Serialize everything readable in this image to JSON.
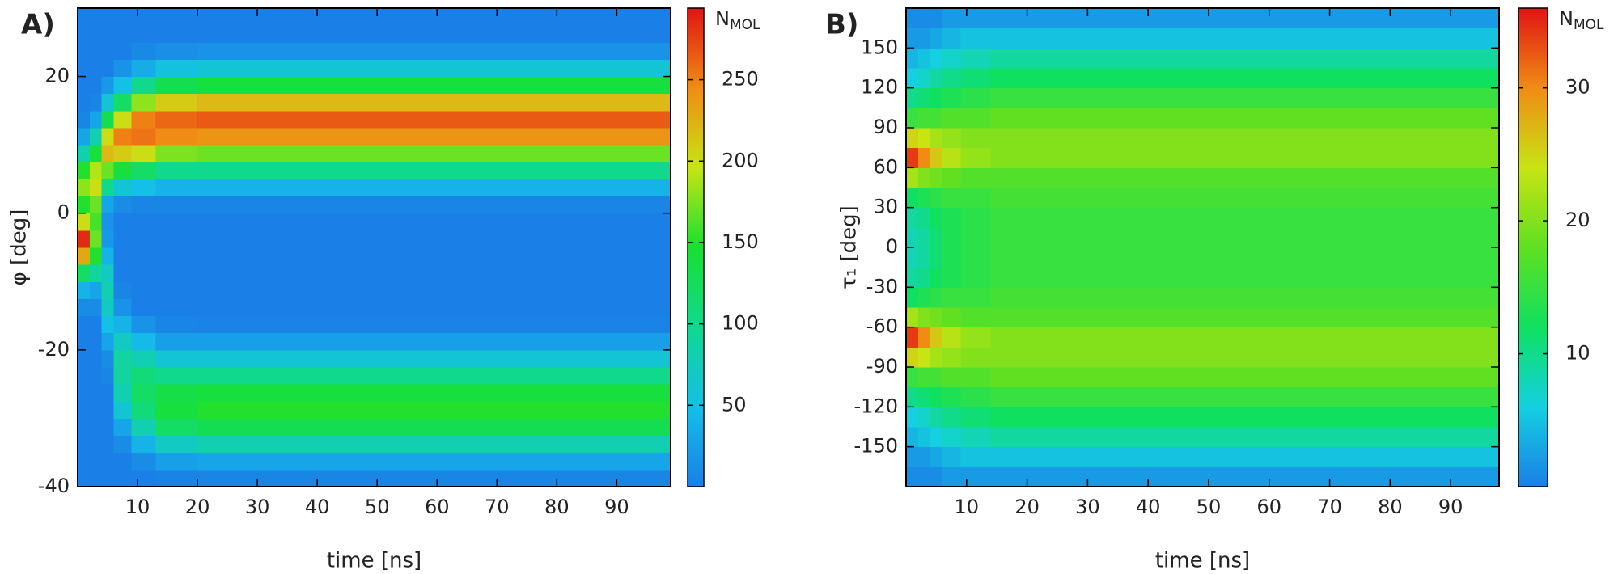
{
  "chart_data": [
    {
      "type": "heatmap",
      "panel_label": "A)",
      "xlabel": "time [ns]",
      "ylabel": "φ [deg]",
      "zlabel": [
        "N",
        "MOL"
      ],
      "xlim": [
        0,
        99
      ],
      "ylim": [
        -40,
        30
      ],
      "zlim": [
        0,
        294
      ],
      "xticks": [
        10,
        20,
        30,
        40,
        50,
        60,
        70,
        80,
        90
      ],
      "yticks": [
        -40,
        -20,
        0,
        20
      ],
      "zticks": [
        50,
        100,
        150,
        200,
        250
      ],
      "colorscale": [
        "#1a7fe6",
        "#14bfe8",
        "#10d890",
        "#18e030",
        "#c8e414",
        "#f08c14",
        "#e01414"
      ],
      "xbins": [
        0,
        2,
        4,
        6,
        9,
        13,
        20,
        99
      ],
      "ybins": [
        -40,
        -37.5,
        -35,
        -32.5,
        -30,
        -27.5,
        -25,
        -22.5,
        -20,
        -17.5,
        -15,
        -12.5,
        -10,
        -7.5,
        -5,
        -2.5,
        0,
        2.5,
        5,
        7.5,
        10,
        12.5,
        15,
        17.5,
        20,
        22.5,
        25,
        27.5,
        30
      ],
      "z": [
        [
          0,
          0,
          0,
          0,
          0,
          3,
          5
        ],
        [
          0,
          0,
          0,
          0,
          10,
          25,
          30
        ],
        [
          0,
          0,
          0,
          10,
          40,
          70,
          80
        ],
        [
          0,
          0,
          0,
          30,
          80,
          120,
          130
        ],
        [
          0,
          0,
          0,
          60,
          110,
          140,
          150
        ],
        [
          0,
          0,
          0,
          80,
          120,
          135,
          140
        ],
        [
          0,
          0,
          5,
          90,
          110,
          100,
          100
        ],
        [
          0,
          0,
          10,
          90,
          80,
          60,
          60
        ],
        [
          0,
          0,
          30,
          70,
          45,
          25,
          25
        ],
        [
          0,
          0,
          50,
          40,
          15,
          5,
          3
        ],
        [
          10,
          10,
          70,
          15,
          0,
          0,
          0
        ],
        [
          40,
          30,
          80,
          5,
          0,
          0,
          0
        ],
        [
          120,
          90,
          70,
          0,
          0,
          0,
          0
        ],
        [
          230,
          150,
          40,
          0,
          0,
          0,
          0
        ],
        [
          285,
          170,
          20,
          0,
          0,
          0,
          0
        ],
        [
          200,
          160,
          15,
          0,
          0,
          0,
          0
        ],
        [
          150,
          170,
          30,
          10,
          5,
          5,
          5
        ],
        [
          180,
          200,
          100,
          60,
          50,
          40,
          40
        ],
        [
          150,
          190,
          170,
          140,
          120,
          100,
          100
        ],
        [
          80,
          140,
          220,
          210,
          200,
          175,
          170
        ],
        [
          30,
          80,
          200,
          250,
          255,
          245,
          240
        ],
        [
          5,
          30,
          130,
          200,
          250,
          260,
          265
        ],
        [
          0,
          5,
          60,
          120,
          180,
          210,
          220
        ],
        [
          0,
          0,
          20,
          50,
          100,
          130,
          140
        ],
        [
          0,
          0,
          0,
          15,
          35,
          55,
          60
        ],
        [
          0,
          0,
          0,
          0,
          8,
          12,
          15
        ],
        [
          0,
          0,
          0,
          0,
          0,
          0,
          0
        ],
        [
          0,
          0,
          0,
          0,
          0,
          0,
          0
        ]
      ]
    },
    {
      "type": "heatmap",
      "panel_label": "B)",
      "xlabel": "time [ns]",
      "ylabel": "τ₁ [deg]",
      "zlabel": [
        "N",
        "MOL"
      ],
      "xlim": [
        0,
        98
      ],
      "ylim": [
        -180,
        180
      ],
      "zlim": [
        0,
        36
      ],
      "xticks": [
        10,
        20,
        30,
        40,
        50,
        60,
        70,
        80,
        90
      ],
      "yticks": [
        -150,
        -120,
        -90,
        -60,
        -30,
        0,
        30,
        60,
        90,
        120,
        150
      ],
      "zticks": [
        10,
        20,
        30
      ],
      "colorscale": [
        "#1a7fe6",
        "#14d0e0",
        "#10e060",
        "#60e020",
        "#c8e414",
        "#f08c14",
        "#e01414"
      ],
      "xbins": [
        0,
        2,
        4,
        6,
        9,
        14,
        20,
        98
      ],
      "ybins": [
        -180,
        -165,
        -150,
        -135,
        -120,
        -105,
        -90,
        -75,
        -60,
        -45,
        -30,
        -15,
        0,
        15,
        30,
        45,
        60,
        75,
        90,
        105,
        120,
        135,
        150,
        165,
        180
      ],
      "z": [
        [
          1,
          1,
          1,
          2,
          2,
          2,
          2
        ],
        [
          2,
          2,
          3,
          4,
          5,
          5,
          5
        ],
        [
          4,
          5,
          6,
          7,
          8,
          9,
          9
        ],
        [
          6,
          7,
          9,
          10,
          11,
          12,
          12
        ],
        [
          10,
          11,
          12,
          13,
          14,
          15,
          15
        ],
        [
          15,
          16,
          16,
          17,
          17,
          18,
          18
        ],
        [
          25,
          24,
          22,
          21,
          20,
          20,
          20
        ],
        [
          34,
          30,
          26,
          23,
          21,
          20,
          20
        ],
        [
          22,
          20,
          19,
          18,
          17,
          17,
          17
        ],
        [
          12,
          13,
          14,
          15,
          15,
          16,
          16
        ],
        [
          9,
          10,
          12,
          13,
          14,
          15,
          15
        ],
        [
          8,
          9,
          11,
          13,
          14,
          15,
          15
        ],
        [
          8,
          9,
          11,
          13,
          14,
          15,
          15
        ],
        [
          9,
          10,
          12,
          13,
          14,
          15,
          15
        ],
        [
          12,
          13,
          14,
          15,
          15,
          16,
          16
        ],
        [
          22,
          20,
          19,
          18,
          17,
          17,
          17
        ],
        [
          34,
          30,
          26,
          23,
          21,
          20,
          20
        ],
        [
          25,
          24,
          22,
          21,
          20,
          20,
          20
        ],
        [
          15,
          16,
          16,
          17,
          17,
          18,
          18
        ],
        [
          10,
          11,
          12,
          13,
          14,
          15,
          15
        ],
        [
          6,
          7,
          9,
          10,
          11,
          12,
          12
        ],
        [
          4,
          5,
          6,
          7,
          8,
          9,
          9
        ],
        [
          2,
          2,
          3,
          4,
          5,
          5,
          5
        ],
        [
          1,
          1,
          1,
          2,
          2,
          2,
          2
        ]
      ]
    }
  ]
}
